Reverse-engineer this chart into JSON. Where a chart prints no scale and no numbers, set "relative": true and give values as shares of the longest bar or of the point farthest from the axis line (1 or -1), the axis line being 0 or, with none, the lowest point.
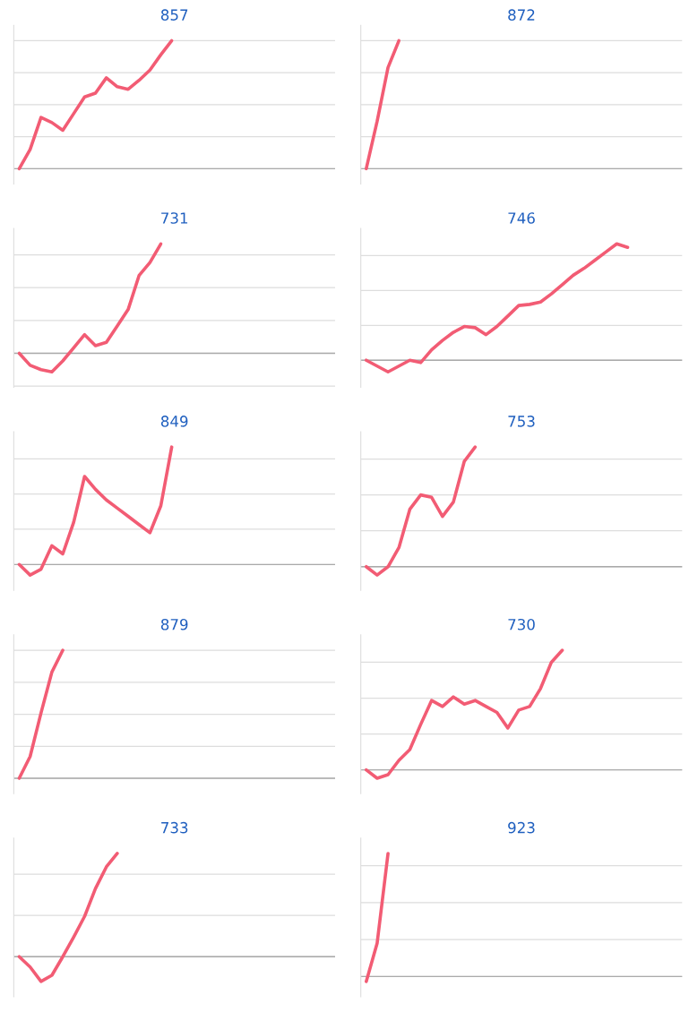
{
  "chart_data": [
    {
      "type": "line",
      "title": "857",
      "relative": true,
      "grid": "y",
      "categories": [
        null,
        null,
        null,
        null,
        null,
        null,
        null,
        null,
        null,
        null,
        null,
        null,
        null,
        null,
        null,
        null,
        null,
        null,
        null,
        null,
        null,
        null,
        null,
        null,
        null,
        null,
        null,
        null,
        null,
        null
      ],
      "series": [
        {
          "color": "#f25c74",
          "values": [
            0,
            0.15,
            0.4,
            0.36,
            0.3,
            0.43,
            0.56,
            0.59,
            0.71,
            0.64,
            0.62,
            0.69,
            0.77,
            0.89,
            1.0,
            null,
            null,
            null,
            null,
            null,
            null,
            null,
            null,
            null,
            null,
            null,
            null,
            null,
            null,
            null
          ]
        }
      ]
    },
    {
      "type": "line",
      "title": "872",
      "relative": true,
      "grid": "y",
      "categories": [
        null,
        null,
        null,
        null,
        null,
        null,
        null,
        null,
        null,
        null,
        null,
        null,
        null,
        null,
        null,
        null,
        null,
        null,
        null,
        null,
        null,
        null,
        null,
        null,
        null,
        null,
        null,
        null,
        null,
        null
      ],
      "series": [
        {
          "color": "#f25c74",
          "values": [
            0,
            0.37,
            0.79,
            1.0,
            null,
            null,
            null,
            null,
            null,
            null,
            null,
            null,
            null,
            null,
            null,
            null,
            null,
            null,
            null,
            null,
            null,
            null,
            null,
            null,
            null,
            null,
            null,
            null,
            null,
            null
          ]
        }
      ]
    },
    {
      "type": "line",
      "title": "731",
      "relative": true,
      "grid": "y",
      "categories": [
        null,
        null,
        null,
        null,
        null,
        null,
        null,
        null,
        null,
        null,
        null,
        null,
        null,
        null,
        null,
        null,
        null,
        null,
        null,
        null,
        null,
        null,
        null,
        null,
        null,
        null,
        null,
        null,
        null,
        null
      ],
      "series": [
        {
          "color": "#f25c74",
          "values": [
            0,
            -0.11,
            -0.15,
            -0.17,
            -0.07,
            0.05,
            0.17,
            0.07,
            0.1,
            0.25,
            0.4,
            0.71,
            0.83,
            1.0,
            null,
            null,
            null,
            null,
            null,
            null,
            null,
            null,
            null,
            null,
            null,
            null,
            null,
            null,
            null,
            null
          ]
        }
      ]
    },
    {
      "type": "line",
      "title": "746",
      "relative": true,
      "grid": "y",
      "categories": [
        null,
        null,
        null,
        null,
        null,
        null,
        null,
        null,
        null,
        null,
        null,
        null,
        null,
        null,
        null,
        null,
        null,
        null,
        null,
        null,
        null,
        null,
        null,
        null,
        null,
        null,
        null,
        null,
        null,
        null
      ],
      "series": [
        {
          "color": "#f25c74",
          "values": [
            0,
            -0.05,
            -0.1,
            -0.05,
            0,
            -0.02,
            0.09,
            0.17,
            0.24,
            0.29,
            0.28,
            0.22,
            0.29,
            0.38,
            0.47,
            0.48,
            0.5,
            0.57,
            0.65,
            0.73,
            0.79,
            0.86,
            0.93,
            1.0,
            0.97,
            null,
            null,
            null,
            null,
            null
          ]
        }
      ]
    },
    {
      "type": "line",
      "title": "849",
      "relative": true,
      "grid": "y",
      "categories": [
        null,
        null,
        null,
        null,
        null,
        null,
        null,
        null,
        null,
        null,
        null,
        null,
        null,
        null,
        null,
        null,
        null,
        null,
        null,
        null,
        null,
        null,
        null,
        null,
        null,
        null,
        null,
        null,
        null,
        null
      ],
      "series": [
        {
          "color": "#f25c74",
          "values": [
            0,
            -0.09,
            -0.04,
            0.16,
            0.09,
            0.36,
            0.75,
            0.64,
            0.55,
            0.48,
            0.41,
            0.34,
            0.27,
            0.5,
            1.0,
            null,
            null,
            null,
            null,
            null,
            null,
            null,
            null,
            null,
            null,
            null,
            null,
            null,
            null,
            null
          ]
        }
      ]
    },
    {
      "type": "line",
      "title": "753",
      "relative": true,
      "grid": "y",
      "categories": [
        null,
        null,
        null,
        null,
        null,
        null,
        null,
        null,
        null,
        null,
        null,
        null,
        null,
        null,
        null,
        null,
        null,
        null,
        null,
        null,
        null,
        null,
        null,
        null,
        null,
        null,
        null,
        null,
        null,
        null
      ],
      "series": [
        {
          "color": "#f25c74",
          "values": [
            0,
            -0.07,
            0,
            0.16,
            0.48,
            0.6,
            0.58,
            0.42,
            0.54,
            0.88,
            1.0,
            null,
            null,
            null,
            null,
            null,
            null,
            null,
            null,
            null,
            null,
            null,
            null,
            null,
            null,
            null,
            null,
            null,
            null,
            null
          ]
        }
      ]
    },
    {
      "type": "line",
      "title": "879",
      "relative": true,
      "grid": "y",
      "categories": [
        null,
        null,
        null,
        null,
        null,
        null,
        null,
        null,
        null,
        null,
        null,
        null,
        null,
        null,
        null,
        null,
        null,
        null,
        null,
        null,
        null,
        null,
        null,
        null,
        null,
        null,
        null,
        null,
        null,
        null
      ],
      "series": [
        {
          "color": "#f25c74",
          "values": [
            0,
            0.17,
            0.51,
            0.83,
            1.0,
            null,
            null,
            null,
            null,
            null,
            null,
            null,
            null,
            null,
            null,
            null,
            null,
            null,
            null,
            null,
            null,
            null,
            null,
            null,
            null,
            null,
            null,
            null,
            null,
            null
          ]
        }
      ]
    },
    {
      "type": "line",
      "title": "730",
      "relative": true,
      "grid": "y",
      "categories": [
        null,
        null,
        null,
        null,
        null,
        null,
        null,
        null,
        null,
        null,
        null,
        null,
        null,
        null,
        null,
        null,
        null,
        null,
        null,
        null,
        null,
        null,
        null,
        null,
        null,
        null,
        null,
        null,
        null,
        null
      ],
      "series": [
        {
          "color": "#f25c74",
          "values": [
            0,
            -0.07,
            -0.04,
            0.08,
            0.17,
            0.38,
            0.58,
            0.53,
            0.61,
            0.55,
            0.58,
            0.53,
            0.48,
            0.35,
            0.5,
            0.53,
            0.68,
            0.9,
            1.0,
            null,
            null,
            null,
            null,
            null,
            null,
            null,
            null,
            null,
            null,
            null
          ]
        }
      ]
    },
    {
      "type": "line",
      "title": "733",
      "relative": true,
      "grid": "y",
      "categories": [
        null,
        null,
        null,
        null,
        null,
        null,
        null,
        null,
        null,
        null,
        null,
        null,
        null,
        null,
        null,
        null,
        null,
        null,
        null,
        null,
        null,
        null,
        null,
        null,
        null,
        null,
        null,
        null,
        null,
        null
      ],
      "series": [
        {
          "color": "#f25c74",
          "values": [
            0,
            -0.1,
            -0.24,
            -0.18,
            0,
            0.19,
            0.39,
            0.66,
            0.87,
            1.0,
            null,
            null,
            null,
            null,
            null,
            null,
            null,
            null,
            null,
            null,
            null,
            null,
            null,
            null,
            null,
            null,
            null,
            null,
            null,
            null
          ]
        }
      ]
    },
    {
      "type": "line",
      "title": "923",
      "relative": true,
      "grid": "y",
      "categories": [
        null,
        null,
        null,
        null,
        null,
        null,
        null,
        null,
        null,
        null,
        null,
        null,
        null,
        null,
        null,
        null,
        null,
        null,
        null,
        null,
        null,
        null,
        null,
        null,
        null,
        null,
        null,
        null,
        null,
        null
      ],
      "series": [
        {
          "color": "#f25c74",
          "values": [
            -0.04,
            0.27,
            1.0,
            null,
            null,
            null,
            null,
            null,
            null,
            null,
            null,
            null,
            null,
            null,
            null,
            null,
            null,
            null,
            null,
            null,
            null,
            null,
            null,
            null,
            null,
            null,
            null,
            null,
            null,
            null
          ]
        }
      ]
    }
  ]
}
